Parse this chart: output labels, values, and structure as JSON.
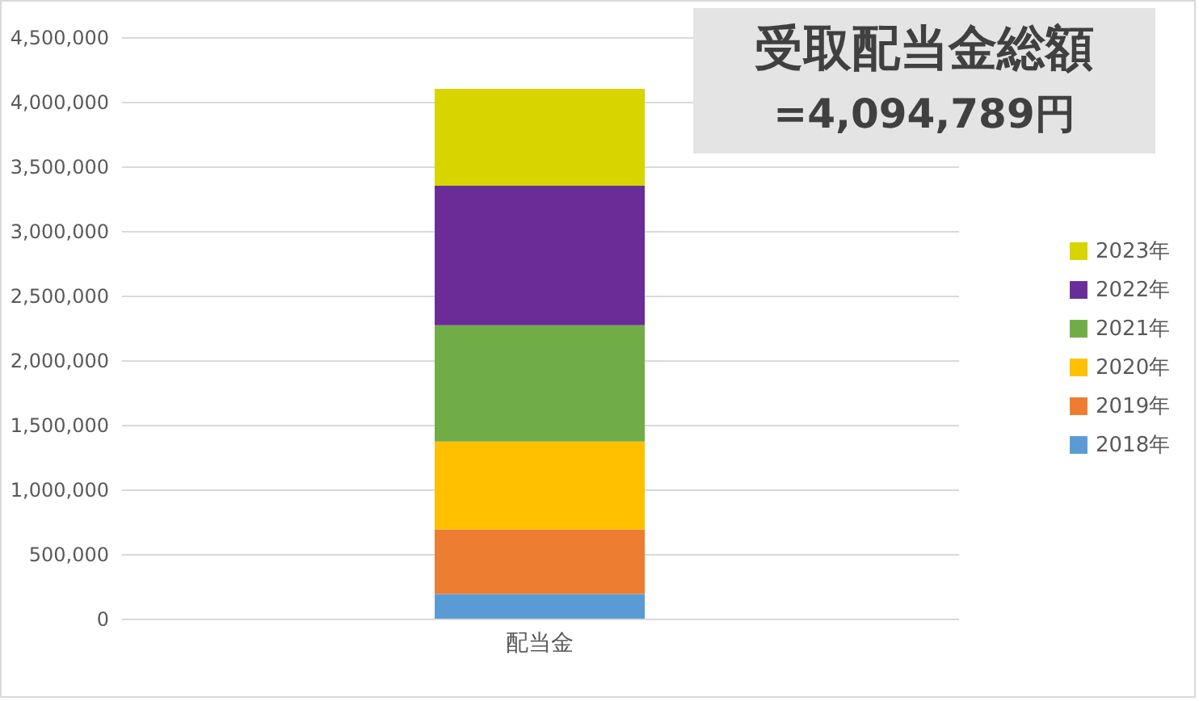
{
  "chart_data": {
    "type": "bar",
    "title": "受取配当金総額",
    "subtitle": "=4,094,789円",
    "categories": [
      "配当金"
    ],
    "stacked": true,
    "series": [
      {
        "name": "2018年",
        "color": "#5b9bd5",
        "values": [
          190000
        ]
      },
      {
        "name": "2019年",
        "color": "#ed7d31",
        "values": [
          500000
        ]
      },
      {
        "name": "2020年",
        "color": "#ffc000",
        "values": [
          680000
        ]
      },
      {
        "name": "2021年",
        "color": "#70ad47",
        "values": [
          900000
        ]
      },
      {
        "name": "2022年",
        "color": "#6a2d98",
        "values": [
          1080000
        ]
      },
      {
        "name": "2023年",
        "color": "#d8d400",
        "values": [
          750000
        ]
      }
    ],
    "ylim": [
      0,
      4500000
    ],
    "yticks": [
      0,
      {
        "value": 500000,
        "label": "500,000"
      },
      {
        "value": 1000000,
        "label": "1,000,000"
      },
      {
        "value": 1500000,
        "label": "1,500,000"
      },
      {
        "value": 2000000,
        "label": "2,000,000"
      },
      {
        "value": 2500000,
        "label": "2,500,000"
      },
      {
        "value": 3000000,
        "label": "3,000,000"
      },
      {
        "value": 3500000,
        "label": "3,500,000"
      },
      {
        "value": 4000000,
        "label": "4,000,000"
      },
      {
        "value": 4500000,
        "label": "4,500,000"
      }
    ],
    "grid": "y",
    "legend": "right"
  }
}
